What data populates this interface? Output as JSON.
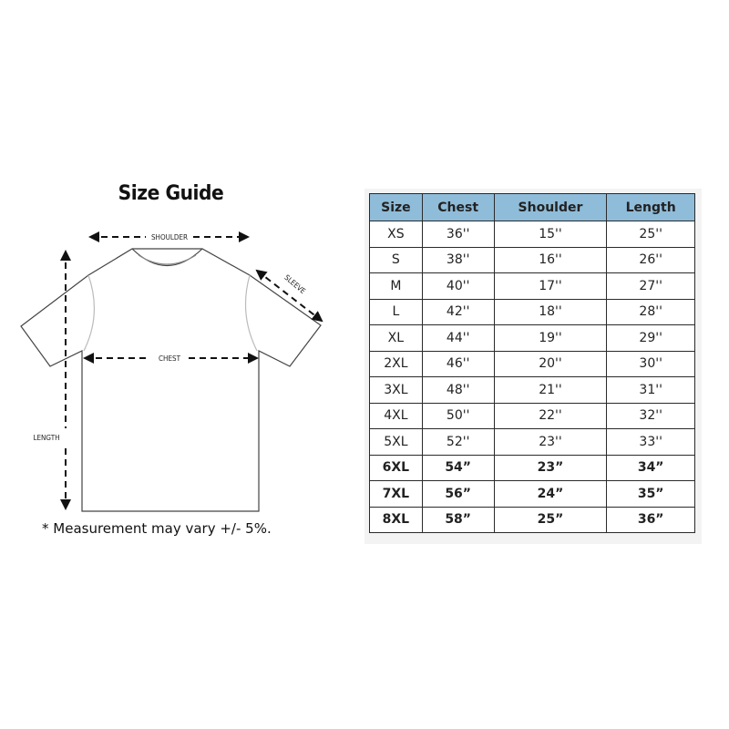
{
  "title": "Size Guide",
  "diagram": {
    "shoulder": "SHOULDER",
    "sleeve": "SLEEVE",
    "chest": "CHEST",
    "length": "LENGTH"
  },
  "note": "* Measurement may vary +/- 5%.",
  "table": {
    "headers": [
      "Size",
      "Chest",
      "Shoulder",
      "Length"
    ],
    "header_color": "#8fbcd9",
    "rows": [
      [
        "XS",
        "36''",
        "15''",
        "25''"
      ],
      [
        "S",
        "38''",
        "16''",
        "26''"
      ],
      [
        "M",
        "40''",
        "17''",
        "27''"
      ],
      [
        "L",
        "42''",
        "18''",
        "28''"
      ],
      [
        "XL",
        "44''",
        "19''",
        "29''"
      ],
      [
        "2XL",
        "46''",
        "20''",
        "30''"
      ],
      [
        "3XL",
        "48''",
        "21''",
        "31''"
      ],
      [
        "4XL",
        "50''",
        "22''",
        "32''"
      ],
      [
        "5XL",
        "52''",
        "23''",
        "33''"
      ],
      [
        "6XL",
        "54”",
        "23”",
        "34”"
      ],
      [
        "7XL",
        "56”",
        "24”",
        "35”"
      ],
      [
        "8XL",
        "58”",
        "25”",
        "36”"
      ]
    ]
  }
}
